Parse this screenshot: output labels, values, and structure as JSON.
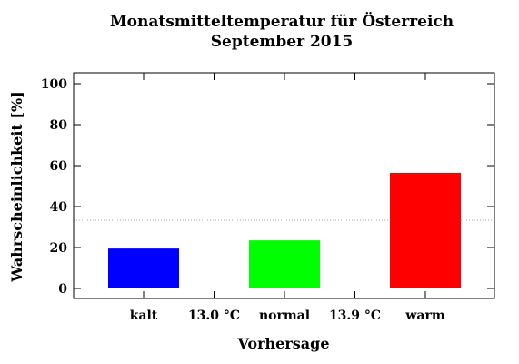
{
  "chart_data": {
    "type": "bar",
    "title": [
      "Monatsmitteltemperatur für Österreich",
      "September 2015"
    ],
    "xlabel": "Vorhersage",
    "ylabel": "Wahrscheinlichkeit [%]",
    "ylim": [
      0,
      100
    ],
    "yticks": [
      "0",
      "20",
      "40",
      "60",
      "80",
      "100"
    ],
    "categories": [
      "kalt",
      "normal",
      "warm"
    ],
    "values": [
      19.5,
      23.5,
      56.5
    ],
    "colors": [
      "#0000ff",
      "#00ff00",
      "#ff0000"
    ],
    "thresholds": [
      "13.0 °C",
      "13.9 °C"
    ],
    "reference_line": 33.3,
    "grid": false
  }
}
